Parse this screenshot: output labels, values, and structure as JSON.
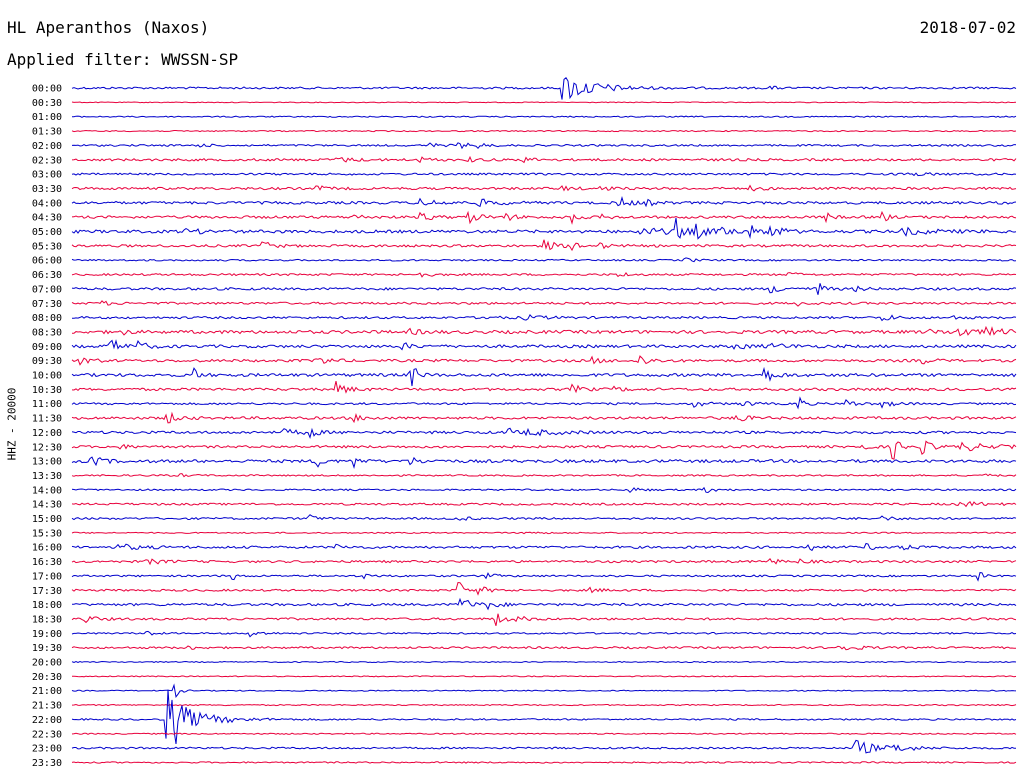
{
  "header": {
    "station": "HL Aperanthos (Naxos)",
    "date": "2018-07-02",
    "filter": "Applied filter: WWSSN-SP",
    "channel": "HHZ - 20000"
  },
  "chart_data": {
    "type": "line",
    "subtype": "helicorder",
    "row_labels": [
      "00:00",
      "00:30",
      "01:00",
      "01:30",
      "02:00",
      "02:30",
      "03:00",
      "03:30",
      "04:00",
      "04:30",
      "05:00",
      "05:30",
      "06:00",
      "06:30",
      "07:00",
      "07:30",
      "08:00",
      "08:30",
      "09:00",
      "09:30",
      "10:00",
      "10:30",
      "11:00",
      "11:30",
      "12:00",
      "12:30",
      "13:00",
      "13:30",
      "14:00",
      "14:30",
      "15:00",
      "15:30",
      "16:00",
      "16:30",
      "17:00",
      "17:30",
      "18:00",
      "18:30",
      "19:00",
      "19:30",
      "20:00",
      "20:30",
      "21:00",
      "21:30",
      "22:00",
      "22:30",
      "23:00",
      "23:30"
    ],
    "colors": [
      "#0000cc",
      "#e8003c"
    ],
    "minutes_per_row": 30,
    "grid": false,
    "rows": [
      {
        "noise": 1.0,
        "events": [
          {
            "t": 0.52,
            "a": 14,
            "d": 0.03
          },
          {
            "t": 0.74,
            "a": 2,
            "d": 0.005
          }
        ]
      },
      {
        "noise": 0.4,
        "events": []
      },
      {
        "noise": 0.6,
        "events": []
      },
      {
        "noise": 0.6,
        "events": []
      },
      {
        "noise": 0.9,
        "events": [
          {
            "t": 0.13,
            "a": 2,
            "d": 0.01
          },
          {
            "t": 0.38,
            "a": 2,
            "d": 0.01
          },
          {
            "t": 0.41,
            "a": 3,
            "d": 0.01
          },
          {
            "t": 0.43,
            "a": 2,
            "d": 0.01
          }
        ]
      },
      {
        "noise": 1.2,
        "events": [
          {
            "t": 0.28,
            "a": 2,
            "d": 0.02
          },
          {
            "t": 0.37,
            "a": 2,
            "d": 0.01
          },
          {
            "t": 0.42,
            "a": 2,
            "d": 0.01
          },
          {
            "t": 0.48,
            "a": 2,
            "d": 0.01
          }
        ]
      },
      {
        "noise": 1.0,
        "events": [
          {
            "t": 0.88,
            "a": 2,
            "d": 0.02
          }
        ]
      },
      {
        "noise": 1.2,
        "events": [
          {
            "t": 0.26,
            "a": 2,
            "d": 0.01
          },
          {
            "t": 0.52,
            "a": 2,
            "d": 0.01
          },
          {
            "t": 0.56,
            "a": 2,
            "d": 0.01
          },
          {
            "t": 0.72,
            "a": 2,
            "d": 0.01
          }
        ]
      },
      {
        "noise": 1.3,
        "events": [
          {
            "t": 0.37,
            "a": 3,
            "d": 0.02
          },
          {
            "t": 0.43,
            "a": 3,
            "d": 0.02
          },
          {
            "t": 0.58,
            "a": 5,
            "d": 0.01
          },
          {
            "t": 0.61,
            "a": 2,
            "d": 0.01
          }
        ]
      },
      {
        "noise": 1.3,
        "events": [
          {
            "t": 0.3,
            "a": 2,
            "d": 0.01
          },
          {
            "t": 0.37,
            "a": 4,
            "d": 0.01
          },
          {
            "t": 0.42,
            "a": 6,
            "d": 0.01
          },
          {
            "t": 0.46,
            "a": 3,
            "d": 0.01
          },
          {
            "t": 0.53,
            "a": 6,
            "d": 0.005
          },
          {
            "t": 0.56,
            "a": 2,
            "d": 0.01
          },
          {
            "t": 0.8,
            "a": 4,
            "d": 0.005
          },
          {
            "t": 0.86,
            "a": 4,
            "d": 0.005
          }
        ]
      },
      {
        "noise": 1.5,
        "events": [
          {
            "t": 0.12,
            "a": 2,
            "d": 0.02
          },
          {
            "t": 0.6,
            "a": 3,
            "d": 0.04
          },
          {
            "t": 0.64,
            "a": 12,
            "d": 0.005
          },
          {
            "t": 0.66,
            "a": 7,
            "d": 0.01
          },
          {
            "t": 0.69,
            "a": 3,
            "d": 0.02
          },
          {
            "t": 0.72,
            "a": 4,
            "d": 0.01
          },
          {
            "t": 0.74,
            "a": 7,
            "d": 0.01
          },
          {
            "t": 0.88,
            "a": 3,
            "d": 0.03
          }
        ]
      },
      {
        "noise": 1.2,
        "events": [
          {
            "t": 0.2,
            "a": 5,
            "d": 0.01
          },
          {
            "t": 0.5,
            "a": 6,
            "d": 0.01
          },
          {
            "t": 0.53,
            "a": 3,
            "d": 0.01
          },
          {
            "t": 0.56,
            "a": 2,
            "d": 0.01
          }
        ]
      },
      {
        "noise": 0.8,
        "events": [
          {
            "t": 0.65,
            "a": 2,
            "d": 0.01
          }
        ]
      },
      {
        "noise": 1.0,
        "events": [
          {
            "t": 0.37,
            "a": 2,
            "d": 0.01
          },
          {
            "t": 0.58,
            "a": 2,
            "d": 0.01
          },
          {
            "t": 0.76,
            "a": 2,
            "d": 0.01
          }
        ]
      },
      {
        "noise": 1.2,
        "events": [
          {
            "t": 0.74,
            "a": 3,
            "d": 0.02
          },
          {
            "t": 0.79,
            "a": 9,
            "d": 0.005
          },
          {
            "t": 0.83,
            "a": 2,
            "d": 0.01
          }
        ]
      },
      {
        "noise": 1.1,
        "events": [
          {
            "t": 0.03,
            "a": 2,
            "d": 0.01
          },
          {
            "t": 0.77,
            "a": 2,
            "d": 0.01
          }
        ]
      },
      {
        "noise": 1.1,
        "events": [
          {
            "t": 0.44,
            "a": 2,
            "d": 0.01
          },
          {
            "t": 0.48,
            "a": 2,
            "d": 0.02
          },
          {
            "t": 0.86,
            "a": 3,
            "d": 0.01
          },
          {
            "t": 0.93,
            "a": 2,
            "d": 0.01
          }
        ]
      },
      {
        "noise": 1.6,
        "events": [
          {
            "t": 0.05,
            "a": 5,
            "d": 0.005
          },
          {
            "t": 0.36,
            "a": 2,
            "d": 0.01
          },
          {
            "t": 0.91,
            "a": 2,
            "d": 0.01
          },
          {
            "t": 0.94,
            "a": 6,
            "d": 0.01
          },
          {
            "t": 0.97,
            "a": 3,
            "d": 0.02
          }
        ]
      },
      {
        "noise": 1.4,
        "events": [
          {
            "t": 0.04,
            "a": 8,
            "d": 0.01
          },
          {
            "t": 0.07,
            "a": 4,
            "d": 0.01
          },
          {
            "t": 0.35,
            "a": 3,
            "d": 0.01
          },
          {
            "t": 0.7,
            "a": 2,
            "d": 0.02
          },
          {
            "t": 0.74,
            "a": 2,
            "d": 0.02
          }
        ]
      },
      {
        "noise": 1.3,
        "events": [
          {
            "t": 0.01,
            "a": 4,
            "d": 0.01
          },
          {
            "t": 0.26,
            "a": 5,
            "d": 0.01
          },
          {
            "t": 0.55,
            "a": 3,
            "d": 0.01
          },
          {
            "t": 0.6,
            "a": 6,
            "d": 0.01
          },
          {
            "t": 0.9,
            "a": 3,
            "d": 0.01
          }
        ]
      },
      {
        "noise": 1.5,
        "events": [
          {
            "t": 0.13,
            "a": 6,
            "d": 0.005
          },
          {
            "t": 0.36,
            "a": 12,
            "d": 0.005
          },
          {
            "t": 0.73,
            "a": 10,
            "d": 0.01
          }
        ]
      },
      {
        "noise": 1.3,
        "events": [
          {
            "t": 0.28,
            "a": 7,
            "d": 0.01
          },
          {
            "t": 0.53,
            "a": 4,
            "d": 0.01
          },
          {
            "t": 0.57,
            "a": 3,
            "d": 0.01
          }
        ]
      },
      {
        "noise": 1.0,
        "events": [
          {
            "t": 0.66,
            "a": 3,
            "d": 0.01
          },
          {
            "t": 0.71,
            "a": 3,
            "d": 0.01
          },
          {
            "t": 0.77,
            "a": 8,
            "d": 0.005
          },
          {
            "t": 0.82,
            "a": 4,
            "d": 0.01
          },
          {
            "t": 0.86,
            "a": 3,
            "d": 0.01
          }
        ]
      },
      {
        "noise": 1.3,
        "events": [
          {
            "t": 0.1,
            "a": 6,
            "d": 0.01
          },
          {
            "t": 0.3,
            "a": 3,
            "d": 0.01
          },
          {
            "t": 0.7,
            "a": 5,
            "d": 0.01
          }
        ]
      },
      {
        "noise": 1.3,
        "events": [
          {
            "t": 0.22,
            "a": 3,
            "d": 0.02
          },
          {
            "t": 0.25,
            "a": 10,
            "d": 0.005
          },
          {
            "t": 0.46,
            "a": 8,
            "d": 0.005
          },
          {
            "t": 0.48,
            "a": 3,
            "d": 0.03
          }
        ]
      },
      {
        "noise": 1.2,
        "events": [
          {
            "t": 0.05,
            "a": 2,
            "d": 0.01
          },
          {
            "t": 0.83,
            "a": 4,
            "d": 0.01
          },
          {
            "t": 0.87,
            "a": 14,
            "d": 0.005
          },
          {
            "t": 0.9,
            "a": 7,
            "d": 0.01
          },
          {
            "t": 0.94,
            "a": 4,
            "d": 0.03
          }
        ]
      },
      {
        "noise": 1.5,
        "events": [
          {
            "t": 0.02,
            "a": 5,
            "d": 0.01
          },
          {
            "t": 0.26,
            "a": 6,
            "d": 0.005
          },
          {
            "t": 0.3,
            "a": 6,
            "d": 0.005
          },
          {
            "t": 0.36,
            "a": 3,
            "d": 0.01
          }
        ]
      },
      {
        "noise": 0.8,
        "events": [
          {
            "t": 0.11,
            "a": 2,
            "d": 0.01
          },
          {
            "t": 0.96,
            "a": 2,
            "d": 0.01
          }
        ]
      },
      {
        "noise": 0.8,
        "events": [
          {
            "t": 0.59,
            "a": 3,
            "d": 0.01
          },
          {
            "t": 0.67,
            "a": 3,
            "d": 0.01
          }
        ]
      },
      {
        "noise": 1.0,
        "events": [
          {
            "t": 0.94,
            "a": 3,
            "d": 0.02
          }
        ]
      },
      {
        "noise": 1.0,
        "events": [
          {
            "t": 0.25,
            "a": 7,
            "d": 0.005
          },
          {
            "t": 0.41,
            "a": 2,
            "d": 0.01
          },
          {
            "t": 0.86,
            "a": 2,
            "d": 0.01
          }
        ]
      },
      {
        "noise": 0.6,
        "events": [
          {
            "t": 0.48,
            "a": 2,
            "d": 0.01
          }
        ]
      },
      {
        "noise": 1.2,
        "events": [
          {
            "t": 0.05,
            "a": 3,
            "d": 0.02
          },
          {
            "t": 0.28,
            "a": 2,
            "d": 0.01
          },
          {
            "t": 0.78,
            "a": 5,
            "d": 0.005
          },
          {
            "t": 0.84,
            "a": 3,
            "d": 0.01
          },
          {
            "t": 0.88,
            "a": 3,
            "d": 0.01
          }
        ]
      },
      {
        "noise": 1.1,
        "events": [
          {
            "t": 0.08,
            "a": 2,
            "d": 0.02
          },
          {
            "t": 0.74,
            "a": 5,
            "d": 0.005
          },
          {
            "t": 0.77,
            "a": 2,
            "d": 0.01
          }
        ]
      },
      {
        "noise": 0.9,
        "events": [
          {
            "t": 0.17,
            "a": 4,
            "d": 0.005
          },
          {
            "t": 0.31,
            "a": 2,
            "d": 0.01
          },
          {
            "t": 0.44,
            "a": 2,
            "d": 0.01
          },
          {
            "t": 0.96,
            "a": 5,
            "d": 0.005
          }
        ]
      },
      {
        "noise": 1.0,
        "events": [
          {
            "t": 0.41,
            "a": 10,
            "d": 0.005
          },
          {
            "t": 0.43,
            "a": 4,
            "d": 0.01
          },
          {
            "t": 0.55,
            "a": 2,
            "d": 0.01
          }
        ]
      },
      {
        "noise": 1.2,
        "events": [
          {
            "t": 0.41,
            "a": 9,
            "d": 0.01
          },
          {
            "t": 0.44,
            "a": 4,
            "d": 0.01
          }
        ]
      },
      {
        "noise": 1.1,
        "events": [
          {
            "t": 0.01,
            "a": 5,
            "d": 0.01
          },
          {
            "t": 0.45,
            "a": 10,
            "d": 0.005
          },
          {
            "t": 0.47,
            "a": 3,
            "d": 0.01
          }
        ]
      },
      {
        "noise": 0.8,
        "events": [
          {
            "t": 0.08,
            "a": 4,
            "d": 0.005
          },
          {
            "t": 0.19,
            "a": 3,
            "d": 0.01
          }
        ]
      },
      {
        "noise": 1.0,
        "events": [
          {
            "t": 0.12,
            "a": 2,
            "d": 0.01
          },
          {
            "t": 0.81,
            "a": 3,
            "d": 0.02
          }
        ]
      },
      {
        "noise": 0.5,
        "events": []
      },
      {
        "noise": 0.5,
        "events": []
      },
      {
        "noise": 0.5,
        "events": [
          {
            "t": 0.11,
            "a": 6,
            "d": 0.005
          }
        ]
      },
      {
        "noise": 0.6,
        "events": []
      },
      {
        "noise": 0.8,
        "events": [
          {
            "t": 0.1,
            "a": 55,
            "d": 0.006
          },
          {
            "t": 0.11,
            "a": 14,
            "d": 0.03
          }
        ]
      },
      {
        "noise": 0.6,
        "events": []
      },
      {
        "noise": 0.9,
        "events": [
          {
            "t": 0.83,
            "a": 8,
            "d": 0.02
          },
          {
            "t": 0.87,
            "a": 3,
            "d": 0.02
          }
        ]
      },
      {
        "noise": 0.7,
        "events": []
      }
    ]
  }
}
